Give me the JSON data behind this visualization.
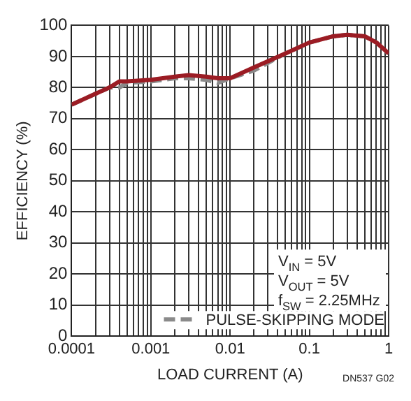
{
  "chart_data": {
    "type": "line",
    "xlabel": "LOAD CURRENT (A)",
    "ylabel": "EFFICIENCY (%)",
    "log": "x",
    "grid": true,
    "legend": "bottom right",
    "marker": "none",
    "xlim": [
      0.0001,
      1
    ],
    "ylim": [
      0,
      100
    ],
    "xticks": [
      "0.0001",
      {
        "value": 0.0002,
        "label": null
      },
      {
        "value": 0.0003,
        "label": null
      },
      {
        "value": 0.0004,
        "label": null
      },
      {
        "value": 0.0005,
        "label": null
      },
      {
        "value": 0.0006,
        "label": null
      },
      {
        "value": 0.0007,
        "label": null
      },
      {
        "value": 0.0008,
        "label": null
      },
      {
        "value": 0.0009,
        "label": null
      },
      0.001,
      {
        "value": 0.002,
        "label": null
      },
      {
        "value": 0.003,
        "label": null
      },
      {
        "value": 0.004,
        "label": null
      },
      {
        "value": 0.005,
        "label": null
      },
      {
        "value": 0.006,
        "label": null
      },
      {
        "value": 0.007,
        "label": null
      },
      {
        "value": 0.008,
        "label": null
      },
      {
        "value": 0.009,
        "label": null
      },
      0.01,
      {
        "value": 0.02,
        "label": null
      },
      {
        "value": 0.03,
        "label": null
      },
      {
        "value": 0.04,
        "label": null
      },
      {
        "value": 0.05,
        "label": null
      },
      {
        "value": 0.06,
        "label": null
      },
      {
        "value": 0.07,
        "label": null
      },
      {
        "value": 0.08,
        "label": null
      },
      {
        "value": 0.09,
        "label": null
      },
      0.1,
      {
        "value": 0.2,
        "label": null
      },
      {
        "value": 0.3,
        "label": null
      },
      {
        "value": 0.4,
        "label": null
      },
      {
        "value": 0.5,
        "label": null
      },
      {
        "value": 0.6,
        "label": null
      },
      {
        "value": 0.7,
        "label": null
      },
      {
        "value": 0.8,
        "label": null
      },
      {
        "value": 0.9,
        "label": null
      },
      1
    ],
    "yticks": [
      0,
      10,
      20,
      30,
      40,
      50,
      60,
      70,
      80,
      90,
      100
    ],
    "x": [
      0.0001,
      0.0002,
      0.0003,
      0.0004,
      0.0005,
      0.001,
      0.002,
      0.003,
      0.005,
      0.007,
      0.01,
      0.02,
      0.05,
      0.1,
      0.2,
      0.3,
      0.5,
      0.7,
      1
    ],
    "series": [
      {
        "color": "#9b1c24",
        "line_style": "solid",
        "values": [
          74.5,
          78,
          80,
          82,
          82,
          82.5,
          83.5,
          84,
          83.5,
          83,
          83,
          86.5,
          91,
          94.5,
          96.5,
          97,
          96.5,
          94.5,
          91
        ]
      },
      {
        "name": "PULSE-SKIPPING MODE",
        "color": "#8a8a8a",
        "line_style": "dashed",
        "values": [
          74.5,
          78,
          80,
          80,
          81.5,
          82,
          83,
          83,
          82.5,
          81.5,
          83,
          85.5,
          91,
          94.5,
          96.5,
          97,
          96.5,
          94.5,
          91
        ]
      }
    ],
    "annotations": [
      "V$_{IN}$ = 5V",
      "V$_{OUT}$ = 5V",
      "f$_{SW}$ = 2.25MHz",
      "DN537 G02"
    ]
  }
}
